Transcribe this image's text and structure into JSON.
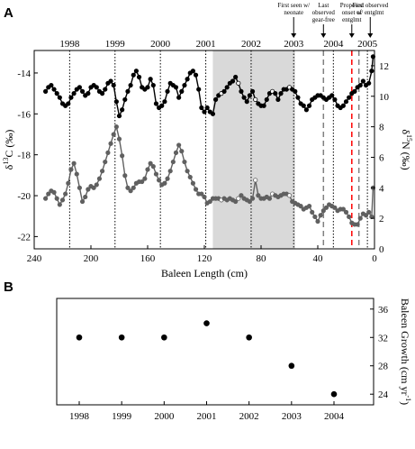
{
  "chart_data": [
    {
      "panel_label": "A",
      "type": "line",
      "xlabel": "Baleen Length (cm)",
      "x_reversed": true,
      "xlim": [
        240,
        0
      ],
      "xticks": [
        240,
        200,
        160,
        120,
        80,
        40,
        0
      ],
      "ylabel_left": "δ13C (‰)",
      "ylabel_left_parts": {
        "delta": "δ",
        "sup": "13",
        "rest": "C (‰)"
      },
      "ylim_left": [
        -22.6,
        -12.9
      ],
      "yticks_left": [
        -22,
        -20,
        -18,
        -16,
        -14
      ],
      "ylabel_right": "δ15N (‰)",
      "ylabel_right_parts": {
        "delta": "δ",
        "sup": "15",
        "rest": "N (‰)"
      },
      "ylim_right": [
        0,
        13
      ],
      "yticks_right": [
        0,
        2,
        4,
        6,
        8,
        10,
        12
      ],
      "year_markers": [
        {
          "year": "1998",
          "x": 215
        },
        {
          "year": "1999",
          "x": 183
        },
        {
          "year": "2000",
          "x": 151
        },
        {
          "year": "2001",
          "x": 119
        },
        {
          "year": "2002",
          "x": 87
        },
        {
          "year": "2003",
          "x": 57
        },
        {
          "year": "2004",
          "x": 29
        },
        {
          "year": "2005",
          "x": 5
        }
      ],
      "shaded_region": {
        "x_start": 114,
        "x_end": 56
      },
      "event_lines": [
        {
          "x": 36,
          "style": "dashed",
          "color": "#808080"
        },
        {
          "x": 16,
          "style": "dashed",
          "color": "#ff0000"
        },
        {
          "x": 11,
          "style": "dashed",
          "color": "#808080"
        }
      ],
      "annotations": [
        {
          "lines": [
            "First seen w/",
            "neonate"
          ],
          "x": 57
        },
        {
          "lines": [
            "Last",
            "observed",
            "gear-free"
          ],
          "x": 36
        },
        {
          "lines": [
            "Proposed",
            "onset of",
            "entglmt"
          ],
          "x": 16
        },
        {
          "lines": [
            "First observed",
            "w/ entglmt"
          ],
          "x": 3
        }
      ],
      "series": [
        {
          "axis": "left",
          "color": "#000000",
          "x": [
            232,
            230,
            228,
            226,
            224,
            222,
            220,
            218,
            216,
            214,
            212,
            210,
            208,
            206,
            204,
            202,
            200,
            198,
            196,
            194,
            192,
            190,
            188,
            186,
            184,
            182,
            180,
            178,
            176,
            174,
            172,
            170,
            168,
            166,
            164,
            162,
            160,
            158,
            156,
            154,
            152,
            150,
            148,
            146,
            144,
            142,
            140,
            138,
            136,
            134,
            132,
            130,
            128,
            126,
            124,
            122,
            120,
            118,
            116,
            114,
            112,
            110,
            108,
            106,
            104,
            102,
            100,
            98,
            96,
            94,
            92,
            90,
            88,
            86,
            84,
            82,
            80,
            78,
            76,
            74,
            72,
            70,
            68,
            66,
            64,
            62,
            60,
            58,
            56,
            54,
            52,
            50,
            48,
            46,
            44,
            42,
            40,
            38,
            36,
            34,
            32,
            30,
            28,
            26,
            24,
            22,
            20,
            18,
            16,
            14,
            12,
            10,
            8,
            6,
            4,
            2,
            1
          ],
          "y": [
            -14.9,
            -14.7,
            -14.6,
            -14.8,
            -15.0,
            -15.2,
            -15.5,
            -15.6,
            -15.5,
            -15.2,
            -15.0,
            -14.8,
            -14.7,
            -14.9,
            -15.1,
            -15.0,
            -14.7,
            -14.6,
            -14.7,
            -14.9,
            -15.0,
            -14.8,
            -14.5,
            -14.4,
            -14.6,
            -15.4,
            -16.1,
            -15.8,
            -15.3,
            -14.9,
            -14.6,
            -14.1,
            -13.9,
            -14.2,
            -14.7,
            -14.8,
            -14.7,
            -14.3,
            -14.6,
            -15.5,
            -15.7,
            -15.6,
            -15.4,
            -14.9,
            -14.5,
            -14.6,
            -14.7,
            -15.2,
            -14.9,
            -14.6,
            -14.3,
            -14.0,
            -13.9,
            -14.1,
            -14.8,
            -15.7,
            -15.9,
            -15.7,
            -15.9,
            -16.0,
            -15.3,
            -15.1,
            -15.0,
            -14.9,
            -14.7,
            -14.5,
            -14.4,
            -14.2,
            -14.5,
            -14.9,
            -15.2,
            -15.4,
            -15.1,
            -14.9,
            -15.3,
            -15.5,
            -15.6,
            -15.6,
            -15.3,
            -15.0,
            -14.9,
            -15.0,
            -15.3,
            -15.0,
            -14.8,
            -14.8,
            -14.7,
            -14.8,
            -14.9,
            -15.2,
            -15.5,
            -15.6,
            -15.8,
            -15.6,
            -15.3,
            -15.2,
            -15.1,
            -15.1,
            -15.2,
            -15.3,
            -15.2,
            -15.1,
            -15.3,
            -15.6,
            -15.7,
            -15.6,
            -15.4,
            -15.2,
            -15.0,
            -14.9,
            -14.7,
            -14.6,
            -14.4,
            -14.6,
            -14.5,
            -13.9,
            -13.2
          ]
        },
        {
          "axis": "right",
          "color": "#606060",
          "x": [
            232,
            230,
            228,
            226,
            224,
            222,
            220,
            218,
            216,
            214,
            212,
            210,
            208,
            206,
            204,
            202,
            200,
            198,
            196,
            194,
            192,
            190,
            188,
            186,
            184,
            182,
            180,
            178,
            176,
            174,
            172,
            170,
            168,
            166,
            164,
            162,
            160,
            158,
            156,
            154,
            152,
            150,
            148,
            146,
            144,
            142,
            140,
            138,
            136,
            134,
            132,
            130,
            128,
            126,
            124,
            122,
            120,
            118,
            116,
            114,
            112,
            110,
            108,
            106,
            104,
            102,
            100,
            98,
            96,
            94,
            92,
            90,
            88,
            86,
            84,
            82,
            80,
            78,
            76,
            74,
            72,
            70,
            68,
            66,
            64,
            62,
            60,
            58,
            56,
            54,
            52,
            50,
            48,
            46,
            44,
            42,
            40,
            38,
            36,
            34,
            32,
            30,
            28,
            26,
            24,
            22,
            20,
            18,
            16,
            14,
            12,
            10,
            8,
            6,
            4,
            2,
            1
          ],
          "y": [
            3.3,
            3.6,
            3.8,
            3.7,
            3.3,
            2.9,
            3.2,
            3.6,
            4.3,
            5.2,
            5.6,
            4.9,
            4.0,
            3.1,
            3.4,
            3.9,
            4.1,
            4.0,
            4.2,
            4.6,
            5.1,
            5.7,
            6.3,
            6.9,
            7.5,
            8.0,
            7.2,
            6.1,
            4.8,
            4.0,
            3.8,
            4.0,
            4.3,
            4.4,
            4.4,
            4.6,
            5.2,
            5.6,
            5.4,
            4.9,
            4.5,
            4.2,
            4.3,
            4.6,
            5.1,
            5.7,
            6.3,
            6.8,
            6.4,
            5.7,
            5.1,
            4.7,
            4.3,
            3.9,
            3.6,
            3.6,
            3.4,
            3.0,
            3.1,
            3.3,
            3.3,
            3.3,
            3.2,
            3.3,
            3.2,
            3.3,
            3.2,
            3.1,
            3.3,
            3.5,
            3.3,
            3.2,
            3.1,
            3.3,
            4.5,
            3.5,
            3.3,
            3.3,
            3.4,
            3.3,
            3.6,
            3.5,
            3.4,
            3.5,
            3.6,
            3.6,
            3.5,
            3.1,
            3.0,
            2.9,
            2.8,
            2.6,
            2.7,
            2.8,
            2.4,
            2.1,
            1.8,
            2.2,
            2.5,
            2.7,
            2.9,
            2.8,
            2.7,
            2.5,
            2.6,
            2.6,
            2.4,
            2.1,
            1.7,
            1.6,
            1.6,
            2.0,
            2.3,
            2.2,
            2.4,
            2.1,
            4.0
          ]
        }
      ]
    },
    {
      "panel_label": "B",
      "type": "scatter",
      "ylabel": "Baleen Growth (cm yr-1)",
      "ylabel_parts": {
        "main": "Baleen Growth (cm yr",
        "sup": "-1",
        "end": ")"
      },
      "ylim": [
        22.5,
        37.5
      ],
      "yticks": [
        24,
        28,
        32,
        36
      ],
      "categories": [
        "1998",
        "1999",
        "2000",
        "2001",
        "2002",
        "2003",
        "2004"
      ],
      "values": [
        32,
        32,
        32,
        34,
        32,
        28,
        24
      ]
    }
  ]
}
